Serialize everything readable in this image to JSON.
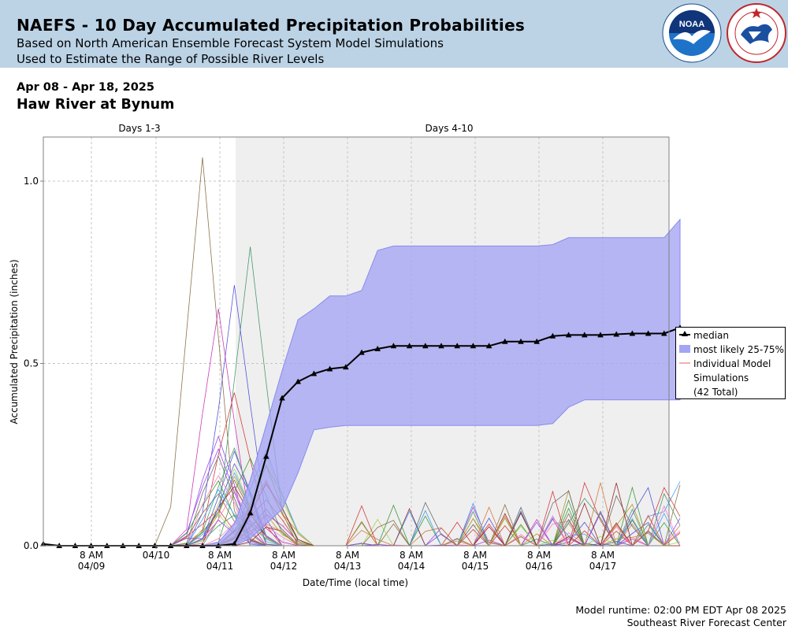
{
  "header": {
    "title": "NAEFS - 10 Day Accumulated Precipitation Probabilities",
    "subtitle1": "Based on North American Ensemble Forecast System Model Simulations",
    "subtitle2": "Used to Estimate the Range of Possible River Levels",
    "noaa_logo_text": "NOAA",
    "nws_logo_text": "NATIONAL WEATHER SERVICE"
  },
  "date_range": "Apr 08 - Apr 18, 2025",
  "station": "Haw River at Bynum",
  "footer": {
    "runtime": "Model runtime: 02:00 PM EDT Apr 08 2025",
    "center": "Southeast River Forecast Center"
  },
  "legend": {
    "median": "median",
    "band": "most likely 25-75%",
    "ind_line1": "Individual Model",
    "ind_line2": "Simulations",
    "ind_line3": "(42 Total)"
  },
  "chart_data": {
    "type": "line",
    "xlabel": "Date/Time (local time)",
    "ylabel": "Accumulated Precipitation (inches)",
    "ylim": [
      0,
      1.12
    ],
    "y_ticks": [
      "0.0",
      "0.5",
      "1.0"
    ],
    "x_tick_labels": [
      [
        "8 AM",
        "04/09"
      ],
      [
        "04/10",
        ""
      ],
      [
        "8 AM",
        "04/11"
      ],
      [
        "8 AM",
        "04/12"
      ],
      [
        "8 AM",
        "04/13"
      ],
      [
        "8 AM",
        "04/14"
      ],
      [
        "8 AM",
        "04/15"
      ],
      [
        "8 AM",
        "04/16"
      ],
      [
        "8 AM",
        "04/17"
      ]
    ],
    "periods": [
      "Days 1-3",
      "Days 4-10"
    ],
    "grid": true,
    "colors": {
      "median": "#000000",
      "band": "#a4a4f4",
      "band_edge": "#8a8af0",
      "shaded_period": "#efefef",
      "individual": "#e06060"
    },
    "median": [
      0.005,
      0,
      0,
      0,
      0,
      0,
      0,
      0,
      0,
      0,
      0,
      0,
      0.005,
      0.09,
      0.245,
      0.405,
      0.45,
      0.472,
      0.485,
      0.49,
      0.53,
      0.54,
      0.548,
      0.548,
      0.548,
      0.548,
      0.548,
      0.548,
      0.548,
      0.56,
      0.56,
      0.56,
      0.575,
      0.578,
      0.578,
      0.578,
      0.58,
      0.582,
      0.582,
      0.582,
      0.598
    ],
    "p75": [
      0,
      0,
      0,
      0,
      0,
      0,
      0,
      0,
      0,
      0,
      0,
      0.01,
      0.06,
      0.18,
      0.33,
      0.48,
      0.62,
      0.65,
      0.685,
      0.685,
      0.7,
      0.81,
      0.822,
      0.822,
      0.822,
      0.822,
      0.822,
      0.822,
      0.822,
      0.822,
      0.822,
      0.822,
      0.826,
      0.845,
      0.845,
      0.845,
      0.845,
      0.845,
      0.845,
      0.845,
      0.895
    ],
    "p25": [
      0,
      0,
      0,
      0,
      0,
      0,
      0,
      0,
      0,
      0,
      0,
      0,
      0,
      0.02,
      0.06,
      0.1,
      0.2,
      0.318,
      0.325,
      0.33,
      0.33,
      0.33,
      0.33,
      0.33,
      0.33,
      0.33,
      0.33,
      0.33,
      0.33,
      0.33,
      0.33,
      0.33,
      0.335,
      0.38,
      0.4,
      0.4,
      0.4,
      0.4,
      0.4,
      0.4,
      0.4
    ],
    "individual_count": 42,
    "individual_peak_examples": [
      1.065,
      0.82,
      0.715,
      0.65,
      0.42,
      0.3,
      0.24,
      0.19,
      0.175,
      0.2
    ]
  }
}
